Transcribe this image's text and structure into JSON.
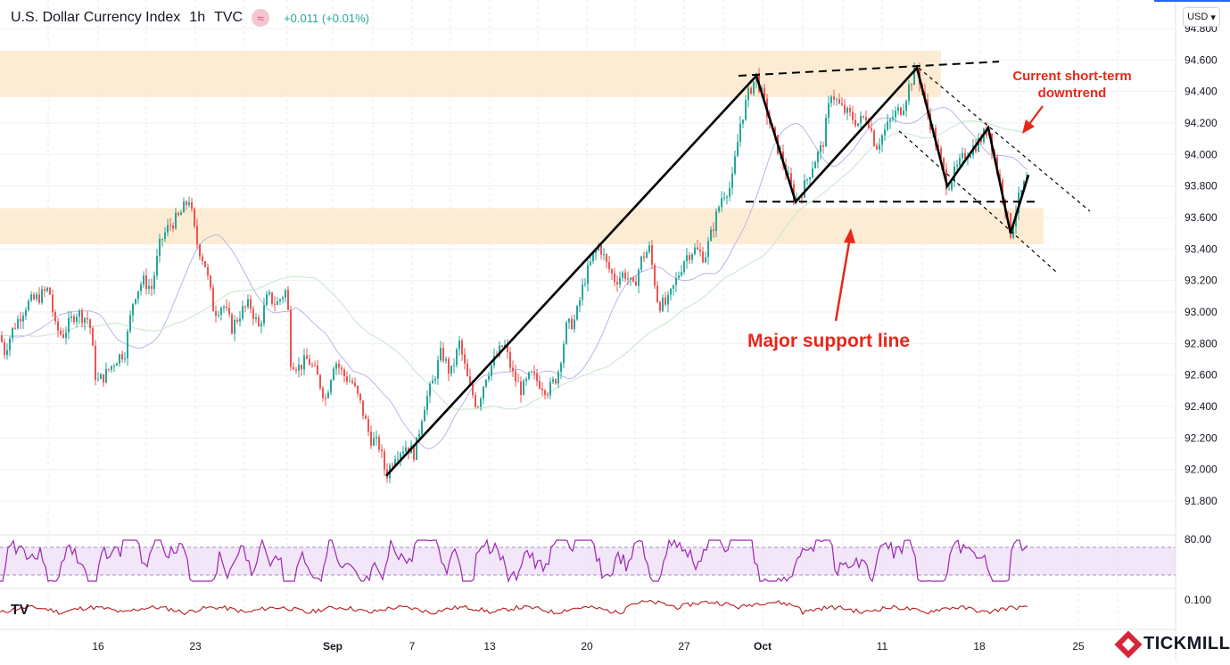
{
  "header": {
    "title": "U.S. Dollar Currency Index",
    "interval": "1h",
    "source": "TVC",
    "change": "+0.011 (+0.01%)",
    "currency": "USD"
  },
  "brand": "TICKMILL",
  "chart_data": {
    "type": "candlestick",
    "price_axis": {
      "ticks": [
        "94.800",
        "94.600",
        "94.400",
        "94.200",
        "94.000",
        "93.800",
        "93.600",
        "93.400",
        "93.200",
        "93.000",
        "92.800",
        "92.600",
        "92.400",
        "92.200",
        "92.000",
        "91.800"
      ],
      "range": [
        91.6,
        94.86
      ]
    },
    "x_axis": {
      "labels": [
        "16",
        "23",
        "Sep",
        "7",
        "13",
        "20",
        "27",
        "Oct",
        "11",
        "18",
        "25"
      ],
      "bold": [
        "Sep",
        "Oct"
      ]
    },
    "price_path": [
      [
        0,
        92.85
      ],
      [
        5,
        92.75
      ],
      [
        15,
        92.9
      ],
      [
        30,
        93.05
      ],
      [
        45,
        93.1
      ],
      [
        55,
        93.15
      ],
      [
        62,
        92.9
      ],
      [
        70,
        92.85
      ],
      [
        85,
        93.0
      ],
      [
        100,
        92.95
      ],
      [
        108,
        92.55
      ],
      [
        118,
        92.6
      ],
      [
        130,
        92.7
      ],
      [
        140,
        92.75
      ],
      [
        150,
        93.1
      ],
      [
        160,
        93.2
      ],
      [
        170,
        93.15
      ],
      [
        180,
        93.45
      ],
      [
        190,
        93.55
      ],
      [
        200,
        93.6
      ],
      [
        212,
        93.72
      ],
      [
        220,
        93.45
      ],
      [
        230,
        93.3
      ],
      [
        240,
        93.0
      ],
      [
        250,
        93.05
      ],
      [
        260,
        92.9
      ],
      [
        270,
        93.0
      ],
      [
        280,
        93.05
      ],
      [
        290,
        92.9
      ],
      [
        300,
        93.1
      ],
      [
        310,
        93.05
      ],
      [
        322,
        93.15
      ],
      [
        325,
        92.7
      ],
      [
        335,
        92.65
      ],
      [
        345,
        92.7
      ],
      [
        355,
        92.6
      ],
      [
        365,
        92.45
      ],
      [
        375,
        92.7
      ],
      [
        385,
        92.6
      ],
      [
        395,
        92.55
      ],
      [
        405,
        92.4
      ],
      [
        415,
        92.2
      ],
      [
        425,
        92.15
      ],
      [
        433,
        91.96
      ],
      [
        443,
        92.1
      ],
      [
        455,
        92.15
      ],
      [
        465,
        92.1
      ],
      [
        475,
        92.4
      ],
      [
        485,
        92.55
      ],
      [
        495,
        92.75
      ],
      [
        505,
        92.6
      ],
      [
        515,
        92.8
      ],
      [
        525,
        92.55
      ],
      [
        535,
        92.4
      ],
      [
        545,
        92.6
      ],
      [
        555,
        92.7
      ],
      [
        565,
        92.8
      ],
      [
        575,
        92.6
      ],
      [
        585,
        92.5
      ],
      [
        595,
        92.6
      ],
      [
        605,
        92.55
      ],
      [
        615,
        92.5
      ],
      [
        625,
        92.6
      ],
      [
        635,
        92.9
      ],
      [
        645,
        92.95
      ],
      [
        655,
        93.2
      ],
      [
        665,
        93.35
      ],
      [
        672,
        93.43
      ],
      [
        680,
        93.3
      ],
      [
        690,
        93.2
      ],
      [
        700,
        93.25
      ],
      [
        710,
        93.15
      ],
      [
        720,
        93.35
      ],
      [
        728,
        93.4
      ],
      [
        738,
        93.05
      ],
      [
        748,
        93.05
      ],
      [
        758,
        93.2
      ],
      [
        768,
        93.35
      ],
      [
        778,
        93.4
      ],
      [
        790,
        93.35
      ],
      [
        800,
        93.55
      ],
      [
        810,
        93.75
      ],
      [
        820,
        93.8
      ],
      [
        830,
        94.2
      ],
      [
        840,
        94.4
      ],
      [
        848,
        94.5
      ],
      [
        858,
        94.3
      ],
      [
        868,
        94.1
      ],
      [
        878,
        93.95
      ],
      [
        892,
        93.7
      ],
      [
        902,
        93.8
      ],
      [
        912,
        93.95
      ],
      [
        922,
        94.05
      ],
      [
        932,
        94.4
      ],
      [
        942,
        94.3
      ],
      [
        952,
        94.25
      ],
      [
        962,
        94.2
      ],
      [
        972,
        94.25
      ],
      [
        982,
        94.05
      ],
      [
        992,
        94.15
      ],
      [
        1002,
        94.25
      ],
      [
        1012,
        94.3
      ],
      [
        1020,
        94.45
      ],
      [
        1028,
        94.55
      ],
      [
        1038,
        94.3
      ],
      [
        1048,
        94.1
      ],
      [
        1062,
        93.8
      ],
      [
        1072,
        93.9
      ],
      [
        1082,
        94.0
      ],
      [
        1092,
        94.05
      ],
      [
        1100,
        94.1
      ],
      [
        1108,
        94.17
      ],
      [
        1118,
        93.9
      ],
      [
        1126,
        93.7
      ],
      [
        1133,
        93.5
      ],
      [
        1141,
        93.7
      ],
      [
        1148,
        93.8
      ],
      [
        1153,
        93.85
      ]
    ],
    "zones": [
      {
        "from": 94.365,
        "to": 94.66,
        "x_end": 1055
      },
      {
        "from": 93.43,
        "to": 93.66,
        "x_end": 1170
      }
    ],
    "trendlines": [
      {
        "style": "solid",
        "points": [
          [
            433,
            91.96
          ],
          [
            848,
            94.5
          ],
          [
            892,
            93.7
          ],
          [
            1028,
            94.55
          ],
          [
            1062,
            93.8
          ],
          [
            1108,
            94.17
          ],
          [
            1133,
            93.5
          ],
          [
            1153,
            93.87
          ]
        ]
      },
      {
        "style": "dashed",
        "points": [
          [
            828,
            94.5
          ],
          [
            1120,
            94.59
          ]
        ]
      },
      {
        "style": "dashed",
        "points": [
          [
            836,
            93.7
          ],
          [
            1165,
            93.7
          ]
        ]
      },
      {
        "style": "dotted",
        "points": [
          [
            1030,
            94.55
          ],
          [
            1222,
            93.64
          ]
        ]
      },
      {
        "style": "dotted",
        "points": [
          [
            1008,
            94.15
          ],
          [
            1185,
            93.25
          ]
        ]
      }
    ],
    "annotations": [
      {
        "text": "Major support line",
        "color": "#e8271a",
        "size": "large"
      },
      {
        "text": "Current short-term",
        "color": "#e8271a",
        "size": "small"
      },
      {
        "text": "downtrend",
        "color": "#e8271a",
        "size": "small"
      }
    ],
    "rsi": {
      "label": "80.00",
      "overbought": 80,
      "oversold": 20,
      "color": "#9c27b0"
    },
    "atr": {
      "label": "0.100",
      "color": "#b71c1c"
    },
    "colors": {
      "up": "#26a69a",
      "down": "#ef5350",
      "zone": "#fde9cc",
      "line": "#000000",
      "annotation": "#e8271a",
      "ma1": "#b9b6e6",
      "ma2": "#c8e6c9"
    }
  }
}
